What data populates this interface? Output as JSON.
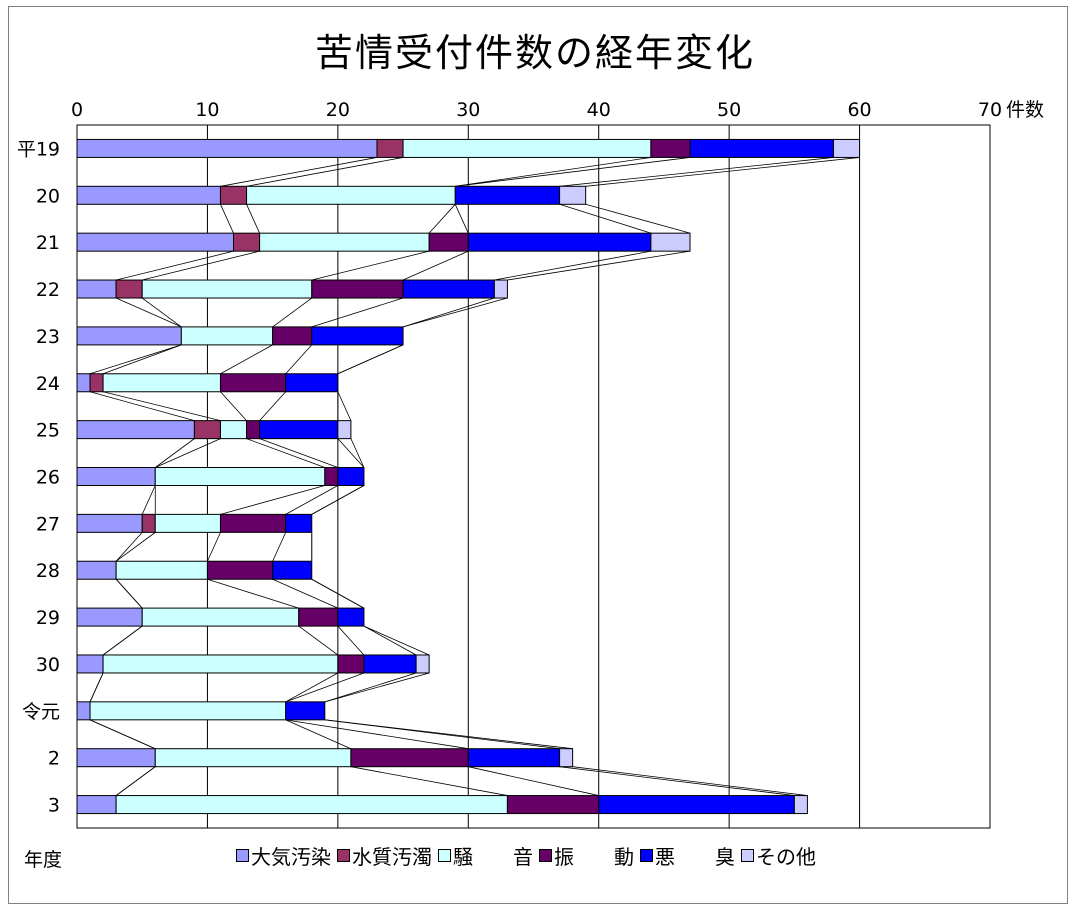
{
  "chart_data": {
    "type": "bar",
    "orientation": "horizontal",
    "stacked": true,
    "title": "苦情受付件数の経年変化",
    "xlabel": "件数",
    "ylabel": "年度",
    "xlim": [
      0,
      70
    ],
    "x_ticks": [
      "0",
      "10",
      "20",
      "30",
      "40",
      "50",
      "60",
      "70"
    ],
    "grid": "vertical",
    "legend_position": "bottom",
    "series_lines": true,
    "categories": [
      "平19",
      "20",
      "21",
      "22",
      "23",
      "24",
      "25",
      "26",
      "27",
      "28",
      "29",
      "30",
      "令元",
      "2",
      "3"
    ],
    "series": [
      {
        "name": "大気汚染",
        "color": "#9999ff",
        "values": [
          23,
          11,
          12,
          3,
          8,
          1,
          9,
          6,
          5,
          3,
          5,
          2,
          1,
          6,
          3
        ]
      },
      {
        "name": "水質汚濁",
        "color": "#993366",
        "values": [
          2,
          2,
          2,
          2,
          0,
          1,
          2,
          0,
          1,
          0,
          0,
          0,
          0,
          0,
          0
        ]
      },
      {
        "name": "騒　　音",
        "color": "#ccffff",
        "values": [
          19,
          16,
          13,
          13,
          7,
          9,
          2,
          13,
          5,
          7,
          12,
          18,
          15,
          15,
          30
        ]
      },
      {
        "name": "振　　動",
        "color": "#660066",
        "values": [
          3,
          0,
          3,
          7,
          3,
          5,
          1,
          1,
          5,
          5,
          3,
          2,
          0,
          9,
          7
        ]
      },
      {
        "name": "悪　　臭",
        "color": "#0000ff",
        "values": [
          11,
          8,
          14,
          7,
          7,
          4,
          6,
          2,
          2,
          3,
          2,
          4,
          3,
          7,
          15
        ]
      },
      {
        "name": "その他",
        "color": "#ccccff",
        "values": [
          2,
          2,
          3,
          1,
          0,
          0,
          1,
          0,
          0,
          0,
          0,
          1,
          0,
          1,
          1
        ]
      }
    ]
  }
}
